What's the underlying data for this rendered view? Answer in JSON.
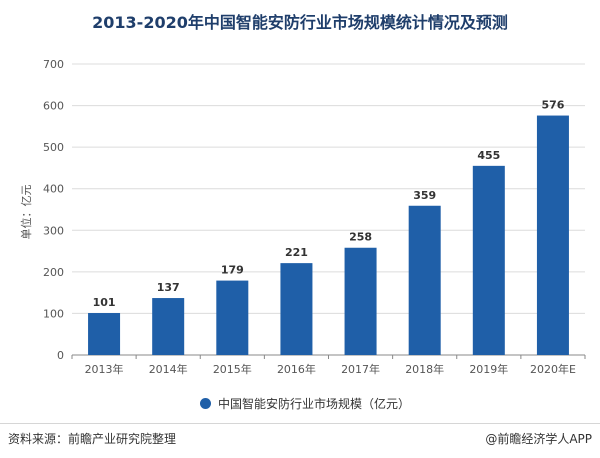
{
  "chart_data": {
    "type": "bar",
    "title": "2013-2020年中国智能安防行业市场规模统计情况及预测",
    "categories": [
      "2013年",
      "2014年",
      "2015年",
      "2016年",
      "2017年",
      "2018年",
      "2019年",
      "2020年E"
    ],
    "series": [
      {
        "name": "中国智能安防行业市场规模（亿元）",
        "values": [
          101,
          137,
          179,
          221,
          258,
          359,
          455,
          576
        ]
      }
    ],
    "ylabel": "单位：亿元",
    "xlabel": "",
    "ylim": [
      0,
      700
    ],
    "yticks": [
      0,
      100,
      200,
      300,
      400,
      500,
      600,
      700
    ],
    "grid": true,
    "legend_position": "bottom",
    "color": "#1f5fa8"
  },
  "footer": {
    "source": "资料来源：前瞻产业研究院整理",
    "credit": "@前瞻经济学人APP"
  }
}
